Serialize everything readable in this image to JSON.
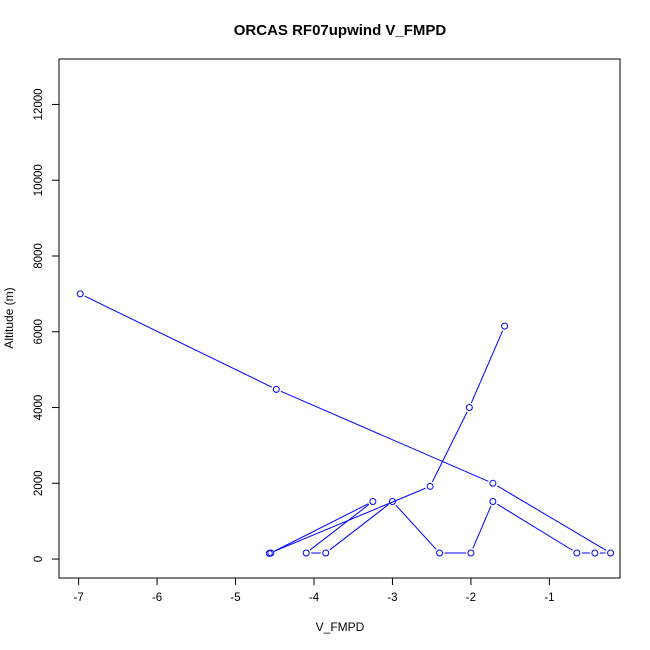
{
  "chart_data": {
    "type": "line",
    "title": "ORCAS RF07upwind V_FMPD",
    "xlabel": "V_FMPD",
    "ylabel": "Altitude (m)",
    "xlim": [
      -7.25,
      -0.1
    ],
    "ylim": [
      -500,
      13200
    ],
    "x_ticks": [
      -7,
      -6,
      -5,
      -4,
      -3,
      -2,
      -1
    ],
    "y_ticks": [
      0,
      2000,
      4000,
      6000,
      8000,
      10000,
      12000
    ],
    "grid": false,
    "legend": "none",
    "series_color": "#0000ff",
    "points": [
      {
        "x": -6.98,
        "y": 7000
      },
      {
        "x": -4.48,
        "y": 4480
      },
      {
        "x": -1.72,
        "y": 2000
      },
      {
        "x": -0.22,
        "y": 160
      },
      {
        "x": -0.42,
        "y": 160
      },
      {
        "x": -0.65,
        "y": 160
      },
      {
        "x": -1.72,
        "y": 1520
      },
      {
        "x": -2.0,
        "y": 160
      },
      {
        "x": -2.4,
        "y": 160
      },
      {
        "x": -3.0,
        "y": 1520
      },
      {
        "x": -3.85,
        "y": 160
      },
      {
        "x": -4.1,
        "y": 160
      },
      {
        "x": -3.25,
        "y": 1520
      },
      {
        "x": -4.55,
        "y": 160
      },
      {
        "x": -4.57,
        "y": 150
      },
      {
        "x": -2.52,
        "y": 1920
      },
      {
        "x": -2.02,
        "y": 4000
      },
      {
        "x": -1.57,
        "y": 6150
      }
    ]
  }
}
